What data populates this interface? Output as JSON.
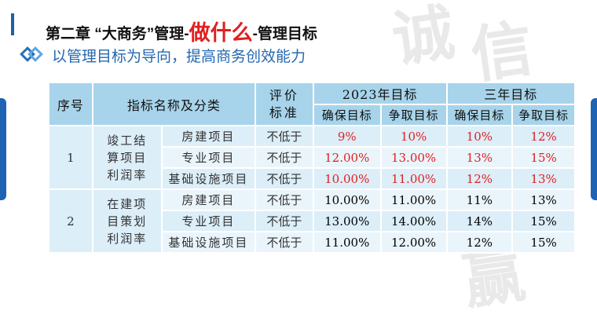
{
  "header": {
    "title_prefix": "第二章 “大商务”管理-",
    "title_emphasis": "做什么",
    "title_suffix": "-管理目标"
  },
  "subtitle": "以管理目标为导向，提高商务创效能力",
  "watermark": [
    "诚",
    "信",
    "赢"
  ],
  "table": {
    "headers": {
      "seq": "序号",
      "indicator": "指标名称及分类",
      "standard": "评价标准",
      "year_2023": "2023年目标",
      "three_year": "三年目标",
      "guarantee": "确保目标",
      "strive": "争取目标"
    },
    "groups": [
      {
        "seq": "1",
        "name": "竣工结算项目利润率",
        "rows": [
          {
            "category": "房建项目",
            "standard": "不低于",
            "g2023": "9%",
            "s2023": "10%",
            "g3y": "10%",
            "s3y": "12%"
          },
          {
            "category": "专业项目",
            "standard": "不低于",
            "g2023": "12.00%",
            "s2023": "13.00%",
            "g3y": "13%",
            "s3y": "15%"
          },
          {
            "category": "基础设施项目",
            "standard": "不低于",
            "g2023": "10.00%",
            "s2023": "11.00%",
            "g3y": "12%",
            "s3y": "13%"
          }
        ]
      },
      {
        "seq": "2",
        "name": "在建项目策划利润率",
        "rows": [
          {
            "category": "房建项目",
            "standard": "不低于",
            "g2023": "10.00%",
            "s2023": "11.00%",
            "g3y": "11%",
            "s3y": "13%"
          },
          {
            "category": "专业项目",
            "standard": "不低于",
            "g2023": "13.00%",
            "s2023": "14.00%",
            "g3y": "14%",
            "s3y": "15%"
          },
          {
            "category": "基础设施项目",
            "standard": "不低于",
            "g2023": "11.00%",
            "s2023": "12.00%",
            "g3y": "12%",
            "s3y": "15%"
          }
        ]
      }
    ]
  },
  "colors": {
    "header_blue": "#a7d4ea",
    "row_blue": "#dceef8",
    "row_light": "#eaf5fb",
    "accent_red": "#e02020",
    "subtitle_blue": "#2468b0"
  }
}
